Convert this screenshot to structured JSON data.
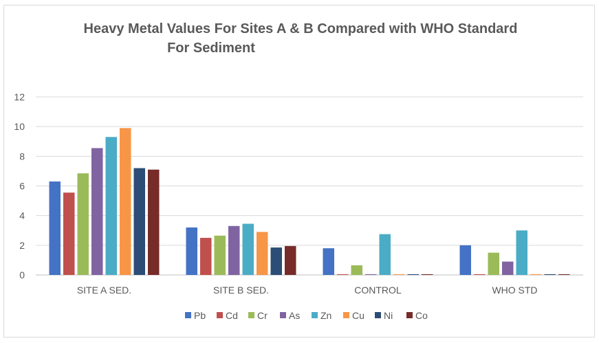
{
  "chart_data": {
    "type": "bar",
    "title_lines": [
      "Heavy Metal Values For Sites A & B Compared with WHO Standard",
      "For Sediment"
    ],
    "xlabel": "",
    "ylabel": "",
    "ylim": [
      0,
      12
    ],
    "yticks": [
      "0",
      "2",
      "4",
      "6",
      "8",
      "10",
      "12"
    ],
    "ytick_values": [
      0,
      2,
      4,
      6,
      8,
      10,
      12
    ],
    "grid": true,
    "legend_position": "bottom",
    "categories": [
      "SITE A SED.",
      "SITE B SED.",
      "CONTROL",
      "WHO STD"
    ],
    "series": [
      {
        "name": "Pb",
        "color": "#4472c4",
        "values": [
          6.3,
          3.2,
          1.8,
          2.0
        ]
      },
      {
        "name": "Cd",
        "color": "#c0504d",
        "values": [
          5.55,
          2.5,
          0.05,
          0.05
        ]
      },
      {
        "name": "Cr",
        "color": "#9bbb59",
        "values": [
          6.85,
          2.65,
          0.65,
          1.5
        ]
      },
      {
        "name": "As",
        "color": "#8064a2",
        "values": [
          8.55,
          3.3,
          0.05,
          0.9
        ]
      },
      {
        "name": "Zn",
        "color": "#4bacc6",
        "values": [
          9.3,
          3.45,
          2.75,
          3.0
        ]
      },
      {
        "name": "Cu",
        "color": "#f79646",
        "values": [
          9.9,
          2.9,
          0.05,
          0.05
        ]
      },
      {
        "name": "Ni",
        "color": "#2c4d75",
        "values": [
          7.2,
          1.85,
          0.05,
          0.05
        ]
      },
      {
        "name": "Co",
        "color": "#772c2a",
        "values": [
          7.1,
          1.95,
          0.05,
          0.05
        ]
      }
    ]
  }
}
